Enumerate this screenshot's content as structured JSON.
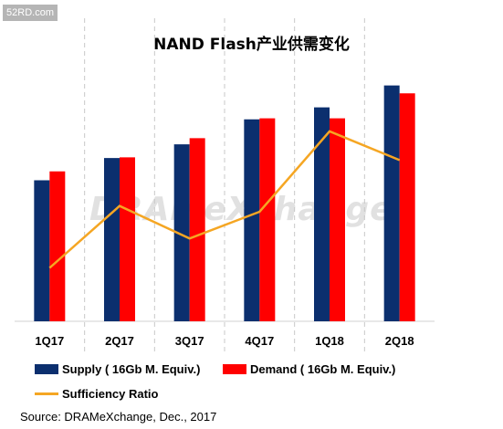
{
  "badge": {
    "text": "52RD.com"
  },
  "watermark": {
    "text": "DRAMeXchange"
  },
  "chart_data": {
    "type": "bar",
    "title": "NAND Flash产业供需变化",
    "categories": [
      "1Q17",
      "2Q17",
      "3Q17",
      "4Q17",
      "1Q18",
      "2Q18"
    ],
    "series": [
      {
        "name": "Supply ( 16Gb M. Equiv.)",
        "type": "bar",
        "color": "#0b2f6e",
        "values": [
          41.2,
          47.7,
          51.7,
          59.0,
          62.5,
          68.9
        ]
      },
      {
        "name": "Demand ( 16Gb M. Equiv.)",
        "type": "bar",
        "color": "#ff0000",
        "values": [
          43.8,
          47.9,
          53.5,
          59.3,
          59.3,
          66.6
        ]
      },
      {
        "name": "Sufficiency Ratio",
        "type": "line",
        "color": "#f5a623",
        "values": [
          15.6,
          33.7,
          24.2,
          32.0,
          55.5,
          47.1
        ]
      }
    ],
    "ylim": [
      0,
      72
    ],
    "grid": "vertical dashed separators",
    "legend_position": "bottom",
    "xlabel": "",
    "ylabel": ""
  },
  "source": "Source: DRAMeXchange, Dec., 2017"
}
